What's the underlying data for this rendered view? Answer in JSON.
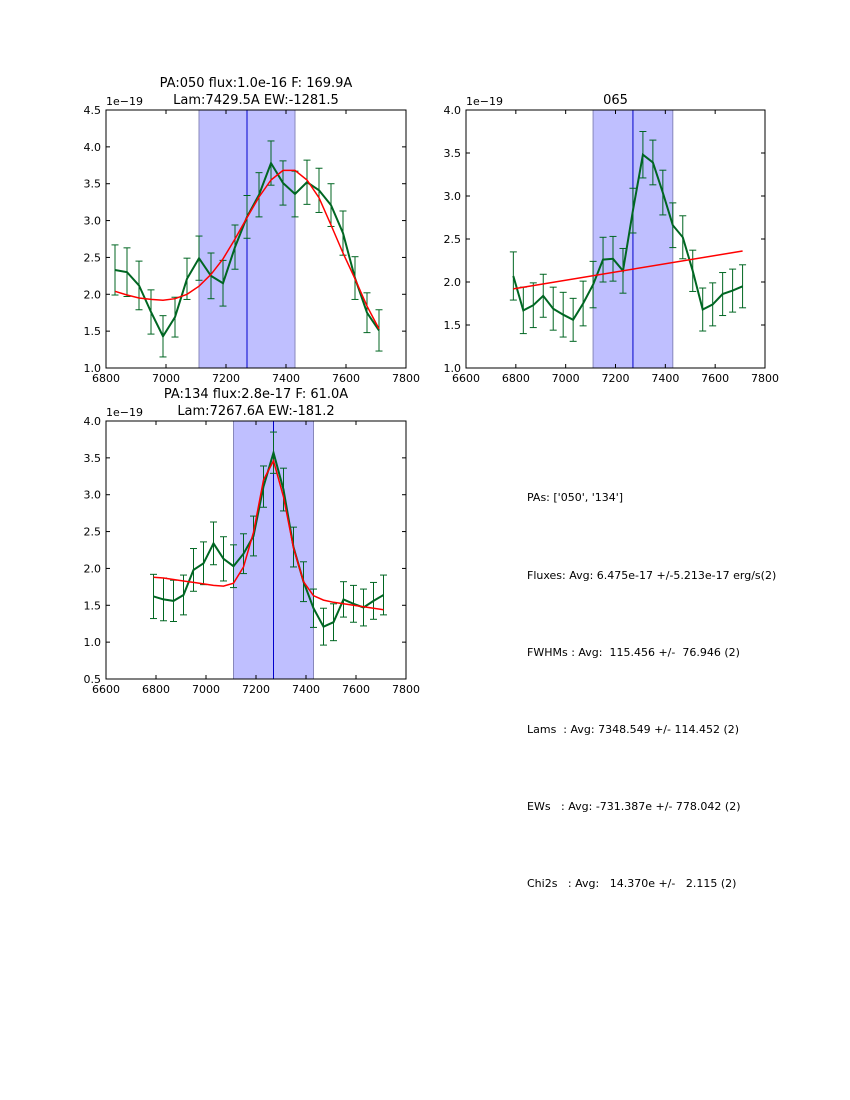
{
  "chart_data": [
    {
      "type": "line",
      "title": [
        "PA:050 flux:1.0e-16 F: 169.9A",
        "Lam:7429.5A EW:-1281.5"
      ],
      "offset_label": "1e−19",
      "xlim": [
        6800,
        7800
      ],
      "ylim": [
        1.0,
        4.5
      ],
      "xticks": [
        "6800",
        "7000",
        "7200",
        "7400",
        "7600",
        "7800"
      ],
      "xtick_values": [
        6800,
        7000,
        7200,
        7400,
        7600,
        7800
      ],
      "yticks": [
        "1.0",
        "1.5",
        "2.0",
        "2.5",
        "3.0",
        "3.5",
        "4.0",
        "4.5"
      ],
      "ytick_values": [
        1.0,
        1.5,
        2.0,
        2.5,
        3.0,
        3.5,
        4.0,
        4.5
      ],
      "band": [
        7110,
        7430
      ],
      "vline": 7270,
      "x": [
        6830,
        6870,
        6910,
        6950,
        6990,
        7030,
        7070,
        7110,
        7150,
        7190,
        7230,
        7270,
        7310,
        7350,
        7390,
        7430,
        7470,
        7510,
        7550,
        7590,
        7630,
        7670,
        7710
      ],
      "series": [
        {
          "name": "data",
          "color": "#006622",
          "values": [
            2.33,
            2.3,
            2.12,
            1.76,
            1.43,
            1.69,
            2.21,
            2.49,
            2.25,
            2.15,
            2.64,
            3.05,
            3.35,
            3.78,
            3.51,
            3.36,
            3.52,
            3.41,
            3.21,
            2.83,
            2.22,
            1.75,
            1.51
          ],
          "errors": [
            0.34,
            0.33,
            0.33,
            0.3,
            0.28,
            0.27,
            0.28,
            0.3,
            0.31,
            0.31,
            0.3,
            0.29,
            0.3,
            0.3,
            0.3,
            0.31,
            0.3,
            0.3,
            0.29,
            0.3,
            0.29,
            0.27,
            0.28
          ]
        },
        {
          "name": "fit",
          "color": "#ff0000",
          "values": [
            2.04,
            1.99,
            1.95,
            1.93,
            1.92,
            1.94,
            2.0,
            2.11,
            2.27,
            2.48,
            2.75,
            3.04,
            3.32,
            3.55,
            3.68,
            3.68,
            3.55,
            3.31,
            2.94,
            2.56,
            2.21,
            1.84,
            1.53
          ]
        }
      ]
    },
    {
      "type": "line",
      "title": [
        "065"
      ],
      "offset_label": "1e−19",
      "xlim": [
        6600,
        7800
      ],
      "ylim": [
        1.0,
        4.0
      ],
      "xticks": [
        "6600",
        "6800",
        "7000",
        "7200",
        "7400",
        "7600",
        "7800"
      ],
      "xtick_values": [
        6600,
        6800,
        7000,
        7200,
        7400,
        7600,
        7800
      ],
      "yticks": [
        "1.0",
        "1.5",
        "2.0",
        "2.5",
        "3.0",
        "3.5",
        "4.0"
      ],
      "ytick_values": [
        1.0,
        1.5,
        2.0,
        2.5,
        3.0,
        3.5,
        4.0
      ],
      "band": [
        7110,
        7430
      ],
      "vline": 7270,
      "x": [
        6790,
        6830,
        6870,
        6910,
        6950,
        6990,
        7030,
        7070,
        7110,
        7150,
        7190,
        7230,
        7270,
        7310,
        7350,
        7390,
        7430,
        7470,
        7510,
        7550,
        7590,
        7630,
        7670,
        7710
      ],
      "series": [
        {
          "name": "data",
          "color": "#006622",
          "values": [
            2.07,
            1.67,
            1.73,
            1.84,
            1.69,
            1.62,
            1.56,
            1.75,
            1.97,
            2.26,
            2.27,
            2.13,
            2.83,
            3.48,
            3.39,
            3.04,
            2.66,
            2.52,
            2.13,
            1.68,
            1.74,
            1.86,
            1.9,
            1.95
          ],
          "errors": [
            0.28,
            0.27,
            0.26,
            0.25,
            0.25,
            0.26,
            0.25,
            0.26,
            0.27,
            0.26,
            0.26,
            0.26,
            0.26,
            0.27,
            0.26,
            0.26,
            0.26,
            0.25,
            0.24,
            0.25,
            0.25,
            0.25,
            0.25,
            0.25
          ]
        },
        {
          "name": "fit",
          "color": "#ff0000",
          "x": [
            6790,
            7710
          ],
          "values": [
            1.92,
            2.36
          ]
        }
      ]
    },
    {
      "type": "line",
      "title": [
        "PA:134 flux:2.8e-17 F: 61.0A",
        "Lam:7267.6A EW:-181.2"
      ],
      "offset_label": "1e−19",
      "xlim": [
        6600,
        7800
      ],
      "ylim": [
        0.5,
        4.0
      ],
      "xticks": [
        "6600",
        "6800",
        "7000",
        "7200",
        "7400",
        "7600",
        "7800"
      ],
      "xtick_values": [
        6600,
        6800,
        7000,
        7200,
        7400,
        7600,
        7800
      ],
      "yticks": [
        "0.5",
        "1.0",
        "1.5",
        "2.0",
        "2.5",
        "3.0",
        "3.5",
        "4.0"
      ],
      "ytick_values": [
        0.5,
        1.0,
        1.5,
        2.0,
        2.5,
        3.0,
        3.5,
        4.0
      ],
      "band": [
        7110,
        7430
      ],
      "vline": 7270,
      "x": [
        6790,
        6830,
        6870,
        6910,
        6950,
        6990,
        7030,
        7070,
        7110,
        7150,
        7190,
        7230,
        7270,
        7310,
        7350,
        7390,
        7430,
        7470,
        7510,
        7550,
        7590,
        7630,
        7670,
        7710
      ],
      "series": [
        {
          "name": "data",
          "color": "#006622",
          "values": [
            1.62,
            1.58,
            1.56,
            1.64,
            1.98,
            2.07,
            2.34,
            2.13,
            2.03,
            2.2,
            2.44,
            3.11,
            3.57,
            3.07,
            2.29,
            1.82,
            1.46,
            1.21,
            1.27,
            1.58,
            1.52,
            1.47,
            1.56,
            1.64
          ],
          "errors": [
            0.3,
            0.29,
            0.28,
            0.27,
            0.29,
            0.29,
            0.29,
            0.3,
            0.29,
            0.27,
            0.27,
            0.28,
            0.28,
            0.29,
            0.27,
            0.27,
            0.26,
            0.25,
            0.25,
            0.24,
            0.25,
            0.25,
            0.25,
            0.27
          ]
        },
        {
          "name": "fit",
          "color": "#ff0000",
          "values": [
            1.88,
            1.87,
            1.85,
            1.83,
            1.81,
            1.79,
            1.77,
            1.76,
            1.8,
            2.02,
            2.49,
            3.2,
            3.46,
            2.97,
            2.28,
            1.82,
            1.63,
            1.57,
            1.54,
            1.52,
            1.5,
            1.48,
            1.46,
            1.44
          ]
        }
      ]
    }
  ],
  "colors": {
    "band": "#bfbfff",
    "band_edge": "#8888bb",
    "vline": "#0000cc",
    "data": "#006622",
    "fit": "#ff0000"
  },
  "stats": {
    "lines": [
      "PAs: ['050', '134']",
      "Fluxes: Avg: 6.475e-17 +/-5.213e-17 erg/s(2)",
      "FWHMs : Avg:  115.456 +/-  76.946 (2)",
      "Lams  : Avg: 7348.549 +/- 114.452 (2)",
      "EWs   : Avg: -731.387e +/- 778.042 (2)",
      "Chi2s   : Avg:   14.370e +/-   2.115 (2)"
    ]
  }
}
